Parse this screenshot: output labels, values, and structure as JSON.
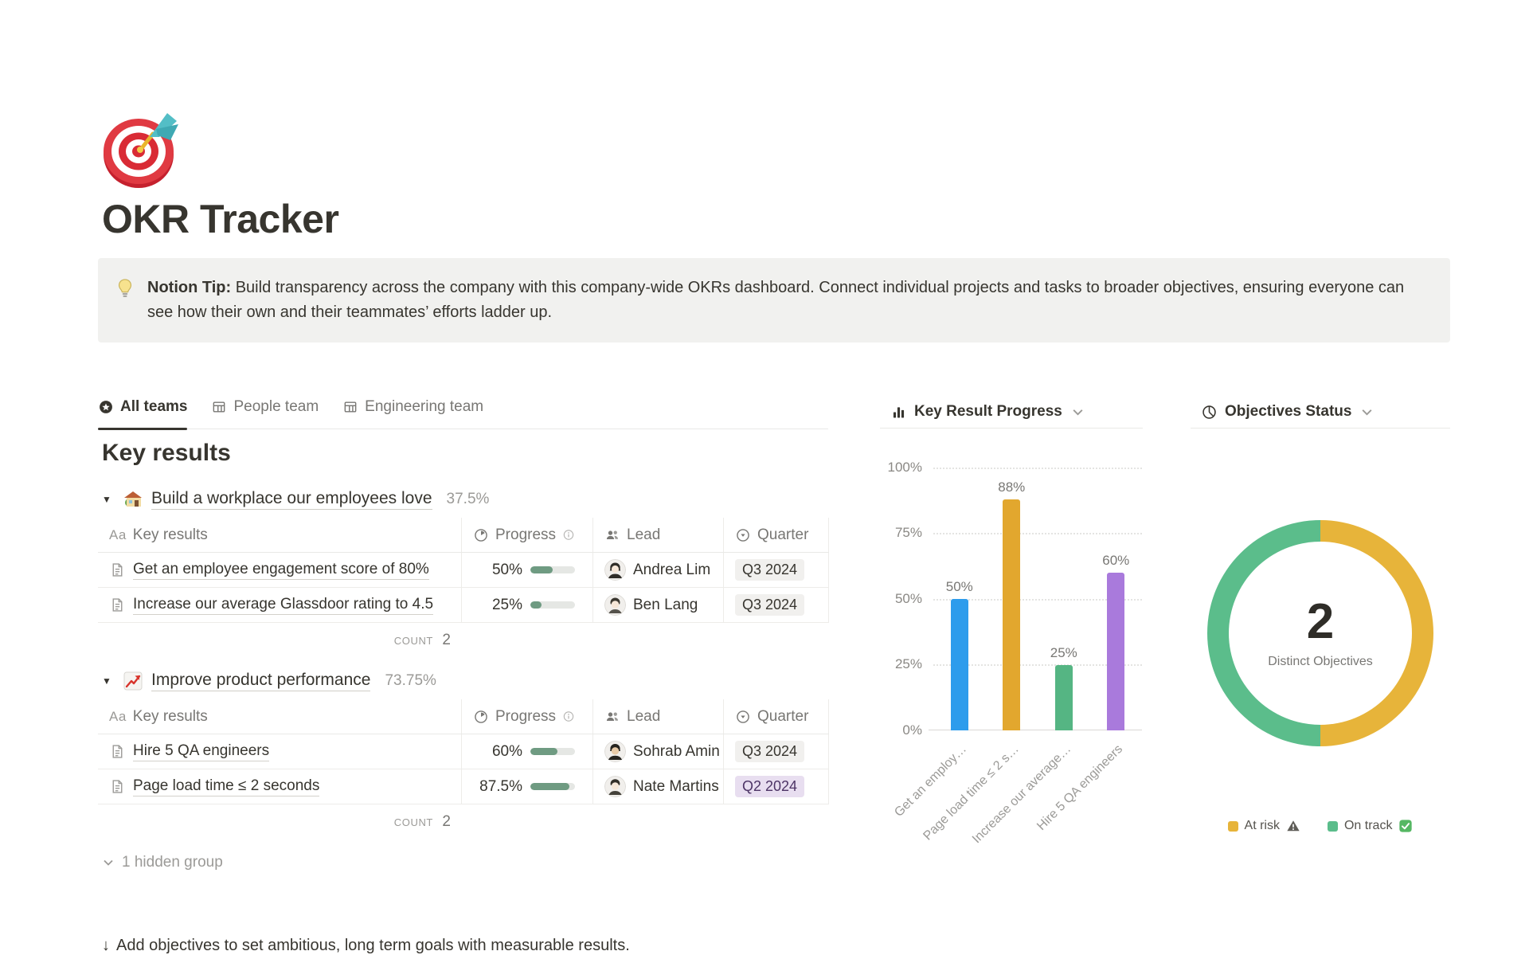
{
  "page": {
    "title": "OKR Tracker"
  },
  "callout": {
    "label": "Notion Tip:",
    "text": " Build transparency across the company with this company-wide OKRs dashboard. Connect individual projects and tasks to broader objectives, ensuring everyone can see how their own and their teammates’ efforts ladder up."
  },
  "tabs": [
    {
      "label": "All teams",
      "active": true
    },
    {
      "label": "People team",
      "active": false
    },
    {
      "label": "Engineering team",
      "active": false
    }
  ],
  "key_results": {
    "heading": "Key results",
    "columns": {
      "name_icon": "Aa",
      "name": "Key results",
      "progress": "Progress",
      "lead": "Lead",
      "quarter": "Quarter"
    },
    "count_label": "COUNT",
    "groups": [
      {
        "title": "Build a workplace our employees love",
        "percent": "37.5%",
        "count": "2",
        "rows": [
          {
            "title": "Get an employee engagement score of 80%",
            "progress_label": "50%",
            "progress_value": 50,
            "lead": "Andrea Lim",
            "quarter": "Q3 2024",
            "quarter_style": "gray"
          },
          {
            "title": "Increase our average Glassdoor rating to 4.5",
            "progress_label": "25%",
            "progress_value": 25,
            "lead": "Ben Lang",
            "quarter": "Q3 2024",
            "quarter_style": "gray"
          }
        ]
      },
      {
        "title": "Improve product performance",
        "percent": "73.75%",
        "count": "2",
        "rows": [
          {
            "title": "Hire 5 QA engineers",
            "progress_label": "60%",
            "progress_value": 60,
            "lead": "Sohrab Amin",
            "quarter": "Q3 2024",
            "quarter_style": "gray"
          },
          {
            "title": "Page load time ≤ 2 seconds",
            "progress_label": "87.5%",
            "progress_value": 87.5,
            "lead": "Nate Martins",
            "quarter": "Q2 2024",
            "quarter_style": "purple"
          }
        ]
      }
    ],
    "hidden_group": "1 hidden group"
  },
  "footer": {
    "arrow": "↓",
    "text": "Add objectives to set ambitious, long term goals with measurable results."
  },
  "bar_chart": {
    "title": "Key Result Progress"
  },
  "donut_chart": {
    "title": "Objectives Status",
    "center_value": "2",
    "center_label": "Distinct Objectives",
    "legend": [
      {
        "label": "At risk",
        "icon": "warning",
        "color": "#E7B43A"
      },
      {
        "label": "On track",
        "icon": "check",
        "color": "#5BBD8B"
      }
    ]
  },
  "chart_data": [
    {
      "type": "bar",
      "title": "Key Result Progress",
      "categories": [
        "Get an employ…",
        "Page load time ≤ 2 s…",
        "Increase our average…",
        "Hire 5 QA engineers"
      ],
      "values": [
        50,
        88,
        25,
        60
      ],
      "value_labels": [
        "50%",
        "88%",
        "25%",
        "60%"
      ],
      "colors": [
        "#2D9CEC",
        "#E2A72E",
        "#55B583",
        "#A97ADC"
      ],
      "yticks": [
        "0%",
        "25%",
        "50%",
        "75%",
        "100%"
      ],
      "ylim": [
        0,
        100
      ],
      "grid": "dotted-horizontal",
      "legend_position": "none"
    },
    {
      "type": "pie",
      "title": "Objectives Status",
      "slices": [
        {
          "label": "At risk",
          "value": 1,
          "color": "#E7B43A"
        },
        {
          "label": "On track",
          "value": 1,
          "color": "#5BBD8B"
        }
      ],
      "center_value": "2",
      "center_label": "Distinct Objectives",
      "legend_position": "bottom"
    }
  ]
}
